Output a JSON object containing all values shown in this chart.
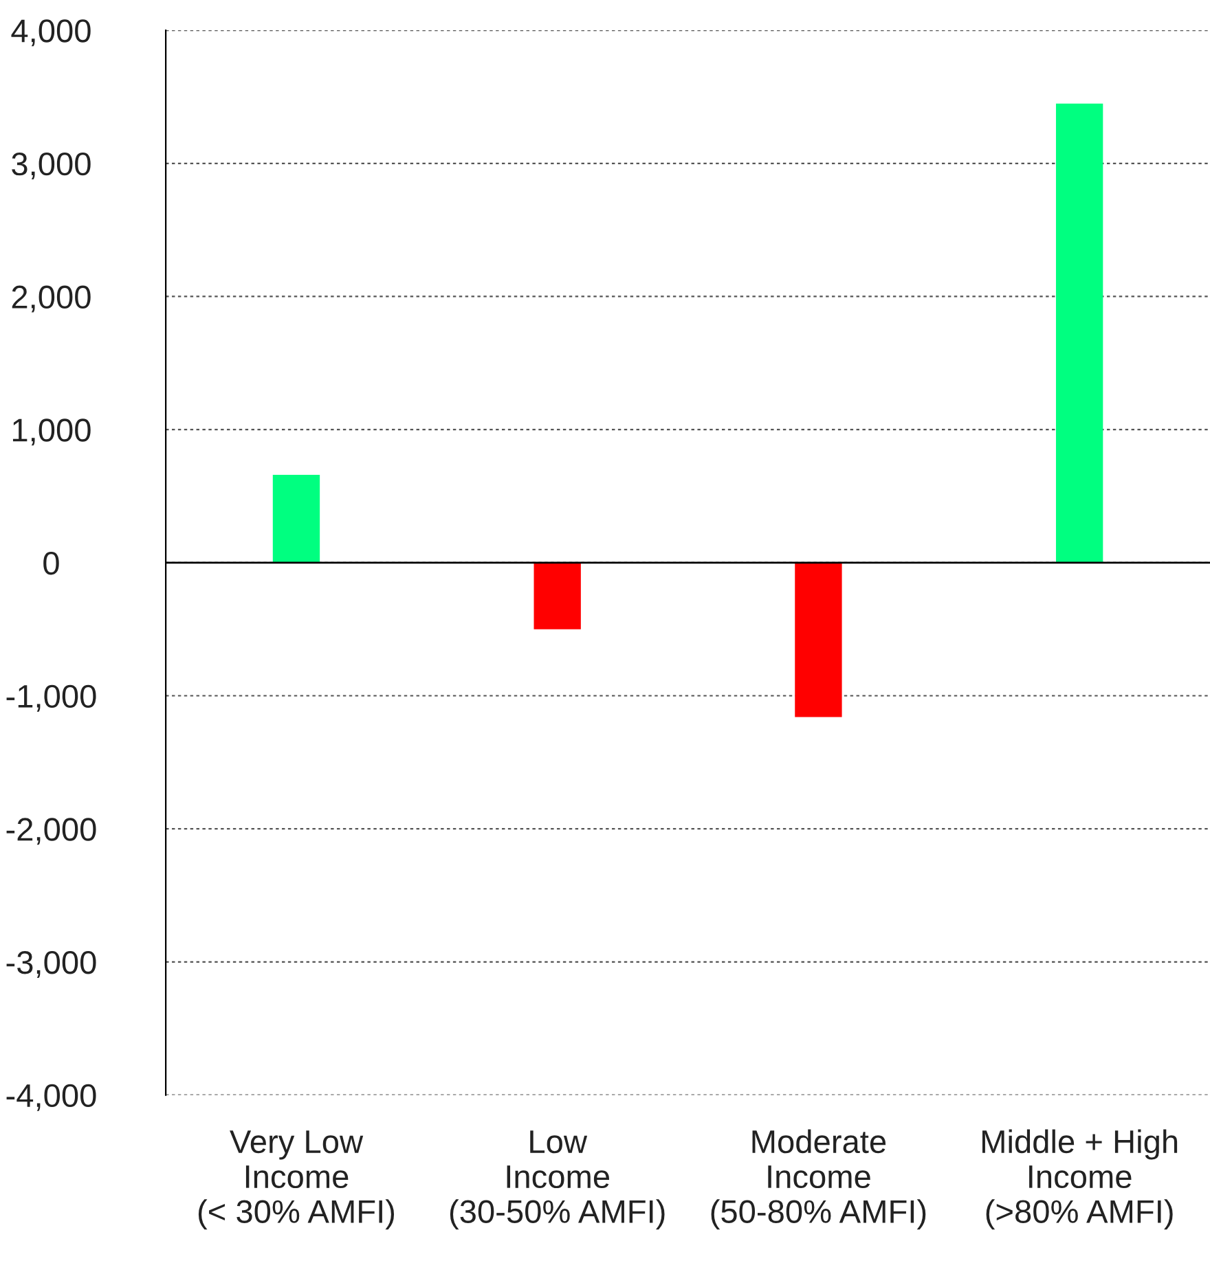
{
  "chart_data": {
    "type": "bar",
    "categories": [
      "Very Low\nIncome\n(< 30% AMFI)",
      "Low\nIncome\n(30-50% AMFI)",
      "Moderate\nIncome\n(50-80% AMFI)",
      "Middle + High\nIncome\n(>80% AMFI)"
    ],
    "values": [
      660,
      -500,
      -1160,
      3450
    ],
    "colors": [
      "#00ff80",
      "#ff0000",
      "#ff0000",
      "#00ff80"
    ],
    "ylim": [
      -4000,
      4000
    ],
    "yticks": [
      {
        "value": -4000,
        "label": "-4,000"
      },
      {
        "value": -3000,
        "label": "-3,000"
      },
      {
        "value": -2000,
        "label": "-2,000"
      },
      {
        "value": -1000,
        "label": "-1,000"
      },
      0,
      {
        "value": 1000,
        "label": "1,000"
      },
      {
        "value": 2000,
        "label": "2,000"
      },
      {
        "value": 3000,
        "label": "3,000"
      },
      {
        "value": 4000,
        "label": "4,000"
      }
    ],
    "grid": "y",
    "ref_lines": [
      {
        "axis": "y",
        "value": 0,
        "color": "#000000",
        "line_style": "solid"
      }
    ]
  }
}
